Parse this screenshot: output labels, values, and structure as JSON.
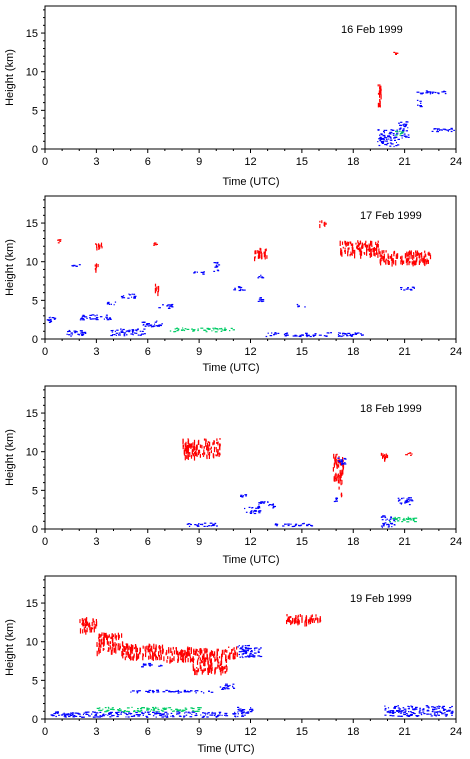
{
  "chart_data": [
    {
      "type": "scatter",
      "annotation": "16 Feb 1999",
      "xlabel": "Time (UTC)",
      "ylabel": "Height (km)",
      "xlim": [
        0,
        24
      ],
      "ylim": [
        0,
        18.5
      ],
      "xticks": [
        0,
        3,
        6,
        9,
        12,
        15,
        18,
        21,
        24
      ],
      "yticks": [
        0,
        5,
        10,
        15
      ],
      "grid": false,
      "colors": {
        "red": "#ff0000",
        "blue": "#0000ff",
        "green": "#00cc66"
      },
      "features": [
        {
          "color": "red",
          "t0": 19.4,
          "t1": 19.6,
          "h0": 5.2,
          "h1": 8.6
        },
        {
          "color": "red",
          "t0": 20.3,
          "t1": 20.6,
          "h0": 12.3,
          "h1": 12.6
        },
        {
          "color": "blue",
          "t0": 21.6,
          "t1": 23.6,
          "h0": 7.2,
          "h1": 7.6
        },
        {
          "color": "blue",
          "t0": 21.7,
          "t1": 21.9,
          "h0": 5.5,
          "h1": 6.5
        },
        {
          "color": "blue",
          "t0": 19.4,
          "t1": 20.6,
          "h0": 0.4,
          "h1": 2.6
        },
        {
          "color": "blue",
          "t0": 20.6,
          "t1": 21.2,
          "h0": 1.5,
          "h1": 3.6
        },
        {
          "color": "blue",
          "t0": 22.5,
          "t1": 24.0,
          "h0": 2.3,
          "h1": 2.8
        },
        {
          "color": "green",
          "t0": 20.4,
          "t1": 20.9,
          "h0": 1.8,
          "h1": 2.4
        }
      ]
    },
    {
      "type": "scatter",
      "annotation": "17 Feb 1999",
      "xlabel": "Time (UTC)",
      "ylabel": "Height (km)",
      "xlim": [
        0,
        24
      ],
      "ylim": [
        0,
        18.5
      ],
      "xticks": [
        0,
        3,
        6,
        9,
        12,
        15,
        18,
        21,
        24
      ],
      "yticks": [
        0,
        5,
        10,
        15
      ],
      "grid": false,
      "colors": {
        "red": "#ff0000",
        "blue": "#0000ff",
        "green": "#00cc66"
      },
      "features": [
        {
          "color": "red",
          "t0": 0.7,
          "t1": 0.9,
          "h0": 12.5,
          "h1": 13.0
        },
        {
          "color": "red",
          "t0": 2.9,
          "t1": 3.4,
          "h0": 11.8,
          "h1": 12.5
        },
        {
          "color": "red",
          "t0": 2.9,
          "t1": 3.1,
          "h0": 9.0,
          "h1": 9.8
        },
        {
          "color": "red",
          "t0": 6.3,
          "t1": 6.5,
          "h0": 12.2,
          "h1": 12.6
        },
        {
          "color": "red",
          "t0": 6.4,
          "t1": 6.6,
          "h0": 5.6,
          "h1": 7.2
        },
        {
          "color": "red",
          "t0": 12.2,
          "t1": 13.0,
          "h0": 10.6,
          "h1": 11.8
        },
        {
          "color": "red",
          "t0": 16.0,
          "t1": 16.4,
          "h0": 14.8,
          "h1": 15.4
        },
        {
          "color": "red",
          "t0": 17.2,
          "t1": 19.5,
          "h0": 11.0,
          "h1": 12.8
        },
        {
          "color": "red",
          "t0": 19.5,
          "t1": 22.5,
          "h0": 10.0,
          "h1": 11.5
        },
        {
          "color": "blue",
          "t0": 1.5,
          "t1": 2.1,
          "h0": 9.4,
          "h1": 9.7
        },
        {
          "color": "blue",
          "t0": 0.0,
          "t1": 0.6,
          "h0": 2.2,
          "h1": 2.9
        },
        {
          "color": "blue",
          "t0": 1.2,
          "t1": 2.4,
          "h0": 0.4,
          "h1": 1.2
        },
        {
          "color": "blue",
          "t0": 2.0,
          "t1": 3.8,
          "h0": 2.5,
          "h1": 3.2
        },
        {
          "color": "blue",
          "t0": 3.6,
          "t1": 4.2,
          "h0": 4.5,
          "h1": 5.0
        },
        {
          "color": "blue",
          "t0": 4.3,
          "t1": 5.2,
          "h0": 5.3,
          "h1": 5.9
        },
        {
          "color": "blue",
          "t0": 3.8,
          "t1": 5.8,
          "h0": 0.5,
          "h1": 1.4
        },
        {
          "color": "blue",
          "t0": 5.4,
          "t1": 6.8,
          "h0": 1.6,
          "h1": 2.4
        },
        {
          "color": "blue",
          "t0": 6.6,
          "t1": 7.4,
          "h0": 4.0,
          "h1": 4.6
        },
        {
          "color": "blue",
          "t0": 8.6,
          "t1": 9.3,
          "h0": 8.4,
          "h1": 8.8
        },
        {
          "color": "blue",
          "t0": 9.8,
          "t1": 10.2,
          "h0": 8.8,
          "h1": 10.0
        },
        {
          "color": "blue",
          "t0": 10.9,
          "t1": 11.6,
          "h0": 6.3,
          "h1": 6.9
        },
        {
          "color": "blue",
          "t0": 12.4,
          "t1": 12.9,
          "h0": 4.9,
          "h1": 5.5
        },
        {
          "color": "blue",
          "t0": 12.4,
          "t1": 12.7,
          "h0": 7.9,
          "h1": 8.4
        },
        {
          "color": "blue",
          "t0": 14.7,
          "t1": 15.2,
          "h0": 4.2,
          "h1": 4.6
        },
        {
          "color": "blue",
          "t0": 20.7,
          "t1": 21.6,
          "h0": 6.4,
          "h1": 6.8
        },
        {
          "color": "blue",
          "t0": 12.8,
          "t1": 18.5,
          "h0": 0.4,
          "h1": 0.9
        },
        {
          "color": "green",
          "t0": 7.2,
          "t1": 11.0,
          "h0": 1.0,
          "h1": 1.5
        }
      ]
    },
    {
      "type": "scatter",
      "annotation": "18 Feb 1999",
      "xlabel": "Time (UTC)",
      "ylabel": "Height (km)",
      "xlim": [
        0,
        24
      ],
      "ylim": [
        0,
        18.5
      ],
      "xticks": [
        0,
        3,
        6,
        9,
        12,
        15,
        18,
        21,
        24
      ],
      "yticks": [
        0,
        5,
        10,
        15
      ],
      "grid": false,
      "colors": {
        "red": "#ff0000",
        "blue": "#0000ff",
        "green": "#00cc66"
      },
      "features": [
        {
          "color": "red",
          "t0": 8.0,
          "t1": 10.2,
          "h0": 9.5,
          "h1": 11.8
        },
        {
          "color": "red",
          "t0": 16.8,
          "t1": 17.4,
          "h0": 6.5,
          "h1": 9.8
        },
        {
          "color": "red",
          "t0": 17.1,
          "t1": 17.3,
          "h0": 4.4,
          "h1": 6.5
        },
        {
          "color": "red",
          "t0": 19.6,
          "t1": 20.1,
          "h0": 9.2,
          "h1": 10.0
        },
        {
          "color": "red",
          "t0": 21.0,
          "t1": 21.4,
          "h0": 9.5,
          "h1": 10.0
        },
        {
          "color": "blue",
          "t0": 17.0,
          "t1": 17.5,
          "h0": 8.4,
          "h1": 9.4
        },
        {
          "color": "blue",
          "t0": 16.8,
          "t1": 17.0,
          "h0": 3.6,
          "h1": 4.2
        },
        {
          "color": "blue",
          "t0": 11.3,
          "t1": 11.7,
          "h0": 4.2,
          "h1": 4.6
        },
        {
          "color": "blue",
          "t0": 11.6,
          "t1": 12.6,
          "h0": 2.0,
          "h1": 2.9
        },
        {
          "color": "blue",
          "t0": 12.3,
          "t1": 13.4,
          "h0": 2.8,
          "h1": 3.6
        },
        {
          "color": "blue",
          "t0": 8.2,
          "t1": 10.0,
          "h0": 0.4,
          "h1": 0.9
        },
        {
          "color": "blue",
          "t0": 20.5,
          "t1": 21.4,
          "h0": 3.2,
          "h1": 4.2
        },
        {
          "color": "blue",
          "t0": 19.6,
          "t1": 20.4,
          "h0": 0.2,
          "h1": 1.8
        },
        {
          "color": "blue",
          "t0": 13.4,
          "t1": 15.8,
          "h0": 0.4,
          "h1": 0.8
        },
        {
          "color": "green",
          "t0": 19.8,
          "t1": 21.6,
          "h0": 1.0,
          "h1": 1.6
        }
      ]
    },
    {
      "type": "scatter",
      "annotation": "19 Feb 1999",
      "xlabel": "Time (UTC)",
      "ylabel": "Height (km)",
      "xlim": [
        0,
        24
      ],
      "ylim": [
        0,
        18.5
      ],
      "xticks": [
        0,
        3,
        6,
        9,
        12,
        15,
        18,
        21,
        24
      ],
      "yticks": [
        0,
        5,
        10,
        15
      ],
      "grid": false,
      "colors": {
        "red": "#ff0000",
        "blue": "#0000ff",
        "green": "#00cc66"
      },
      "features": [
        {
          "color": "red",
          "t0": 2.0,
          "t1": 3.0,
          "h0": 11.5,
          "h1": 13.2
        },
        {
          "color": "red",
          "t0": 3.0,
          "t1": 4.5,
          "h0": 8.8,
          "h1": 11.2
        },
        {
          "color": "red",
          "t0": 4.5,
          "t1": 7.0,
          "h0": 8.0,
          "h1": 9.8
        },
        {
          "color": "red",
          "t0": 7.0,
          "t1": 8.6,
          "h0": 7.6,
          "h1": 9.4
        },
        {
          "color": "red",
          "t0": 8.6,
          "t1": 10.6,
          "h0": 6.2,
          "h1": 9.2
        },
        {
          "color": "red",
          "t0": 10.6,
          "t1": 11.2,
          "h0": 8.0,
          "h1": 9.4
        },
        {
          "color": "red",
          "t0": 14.0,
          "t1": 16.2,
          "h0": 12.6,
          "h1": 13.6
        },
        {
          "color": "blue",
          "t0": 11.2,
          "t1": 12.6,
          "h0": 8.0,
          "h1": 9.6
        },
        {
          "color": "blue",
          "t0": 5.6,
          "t1": 6.8,
          "h0": 6.8,
          "h1": 7.3
        },
        {
          "color": "blue",
          "t0": 10.2,
          "t1": 11.2,
          "h0": 3.9,
          "h1": 4.6
        },
        {
          "color": "blue",
          "t0": 4.8,
          "t1": 9.8,
          "h0": 3.4,
          "h1": 3.8
        },
        {
          "color": "blue",
          "t0": 0.2,
          "t1": 12.0,
          "h0": 0.3,
          "h1": 1.0
        },
        {
          "color": "blue",
          "t0": 11.2,
          "t1": 12.2,
          "h0": 1.0,
          "h1": 1.6
        },
        {
          "color": "blue",
          "t0": 19.8,
          "t1": 23.8,
          "h0": 0.4,
          "h1": 1.8
        },
        {
          "color": "green",
          "t0": 3.0,
          "t1": 9.0,
          "h0": 1.0,
          "h1": 1.6
        }
      ]
    }
  ]
}
